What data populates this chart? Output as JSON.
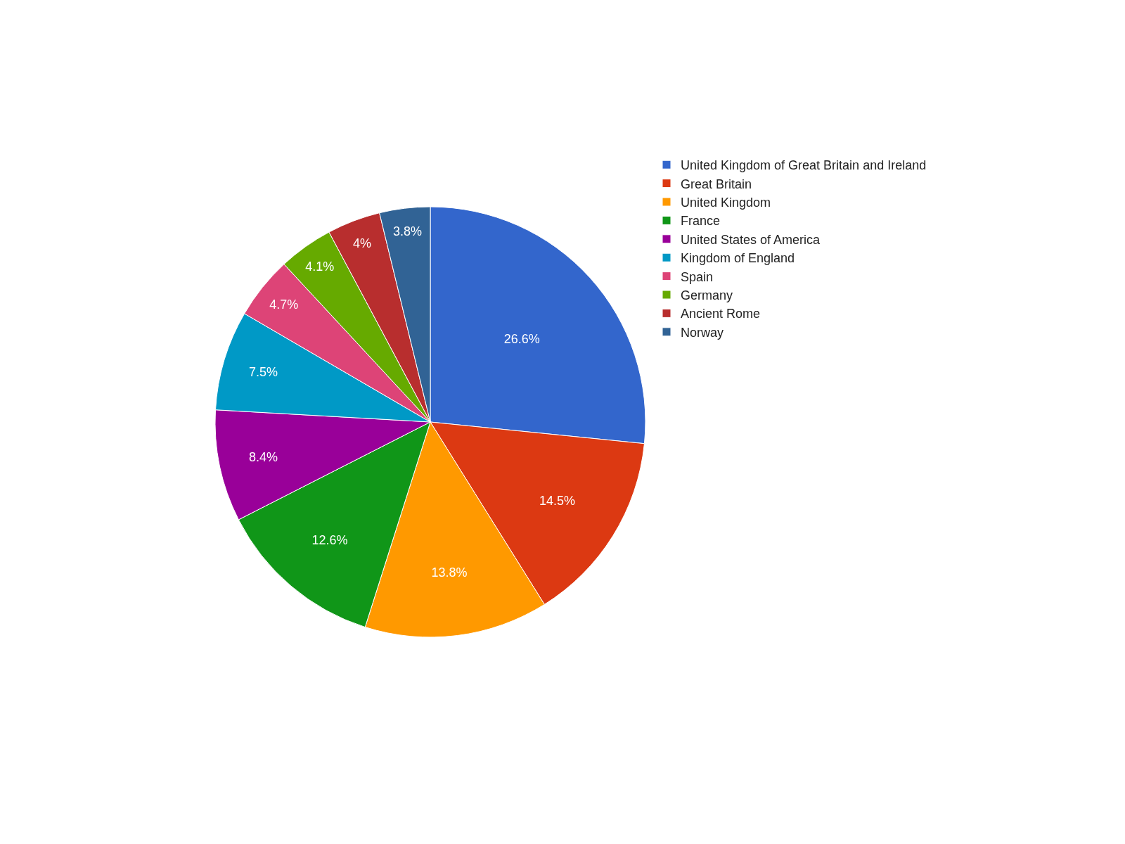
{
  "chart_data": {
    "type": "pie",
    "categories": [
      "United Kingdom of Great Britain and Ireland",
      "Great Britain",
      "United Kingdom",
      "France",
      "United States of America",
      "Kingdom of England",
      "Spain",
      "Germany",
      "Ancient Rome",
      "Norway"
    ],
    "values": [
      26.6,
      14.5,
      13.8,
      12.6,
      8.4,
      7.5,
      4.7,
      4.1,
      4,
      3.8
    ],
    "value_labels": [
      "26.6%",
      "14.5%",
      "13.8%",
      "12.6%",
      "8.4%",
      "7.5%",
      "4.7%",
      "4.1%",
      "4%",
      "3.8%"
    ],
    "colors": [
      "#3366cc",
      "#dc3912",
      "#ff9900",
      "#109618",
      "#990099",
      "#0099c6",
      "#dd4477",
      "#66aa00",
      "#b82e2e",
      "#316395"
    ],
    "legend": "right"
  }
}
